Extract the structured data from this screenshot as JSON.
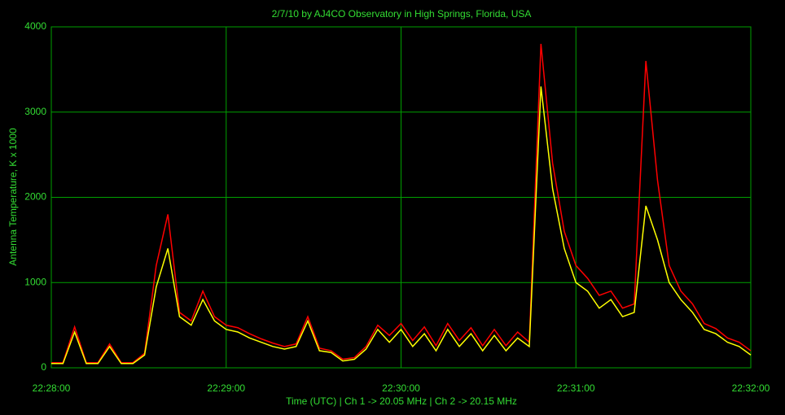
{
  "chart_data": {
    "type": "line",
    "title": "2/7/10  by  AJ4CO Observatory  in  High Springs, Florida, USA",
    "x_label": "Time (UTC)  |  Ch 1 -> 20.05 MHz  |  Ch 2 -> 20.15 MHz",
    "y_label": "Antenna Temperature, K x 1000",
    "x": [
      "22:28:00",
      "22:28:04",
      "22:28:08",
      "22:28:12",
      "22:28:16",
      "22:28:20",
      "22:28:24",
      "22:28:28",
      "22:28:32",
      "22:28:36",
      "22:28:40",
      "22:28:44",
      "22:28:48",
      "22:28:52",
      "22:28:56",
      "22:29:00",
      "22:29:04",
      "22:29:08",
      "22:29:12",
      "22:29:16",
      "22:29:20",
      "22:29:24",
      "22:29:28",
      "22:29:32",
      "22:29:36",
      "22:29:40",
      "22:29:44",
      "22:29:48",
      "22:29:52",
      "22:29:56",
      "22:30:00",
      "22:30:04",
      "22:30:08",
      "22:30:12",
      "22:30:16",
      "22:30:20",
      "22:30:24",
      "22:30:28",
      "22:30:32",
      "22:30:36",
      "22:30:40",
      "22:30:44",
      "22:30:48",
      "22:30:52",
      "22:30:56",
      "22:31:00",
      "22:31:04",
      "22:31:08",
      "22:31:12",
      "22:31:16",
      "22:31:20",
      "22:31:24",
      "22:31:28",
      "22:31:32",
      "22:31:36",
      "22:31:40",
      "22:31:44",
      "22:31:48",
      "22:31:52",
      "22:31:56",
      "22:32:00"
    ],
    "series": [
      {
        "color": "#ff0000",
        "values": [
          60,
          60,
          480,
          60,
          60,
          280,
          60,
          60,
          170,
          1200,
          1800,
          650,
          550,
          900,
          600,
          500,
          470,
          400,
          340,
          290,
          250,
          280,
          600,
          230,
          200,
          100,
          120,
          250,
          500,
          380,
          520,
          320,
          480,
          260,
          520,
          320,
          470,
          260,
          450,
          260,
          420,
          300,
          3800,
          2400,
          1600,
          1200,
          1050,
          850,
          900,
          700,
          750,
          3600,
          2200,
          1200,
          900,
          750,
          520,
          460,
          350,
          300,
          200
        ]
      },
      {
        "color": "#ffff00",
        "values": [
          50,
          50,
          420,
          50,
          50,
          250,
          50,
          50,
          150,
          950,
          1400,
          600,
          500,
          800,
          550,
          450,
          420,
          350,
          300,
          250,
          220,
          250,
          550,
          200,
          180,
          80,
          100,
          220,
          450,
          300,
          450,
          250,
          400,
          200,
          450,
          250,
          400,
          200,
          380,
          200,
          350,
          250,
          3300,
          2100,
          1400,
          1000,
          900,
          700,
          800,
          600,
          650,
          1900,
          1500,
          1000,
          800,
          650,
          450,
          400,
          300,
          250,
          150
        ]
      }
    ],
    "xlim": [
      "22:28:00",
      "22:32:00"
    ],
    "xticks": [
      "22:28:00",
      "22:29:00",
      "22:30:00",
      "22:31:00",
      "22:32:00"
    ],
    "ylim": [
      0,
      4000
    ],
    "yticks": [
      0,
      1000,
      2000,
      3000,
      4000
    ],
    "grid": true
  }
}
